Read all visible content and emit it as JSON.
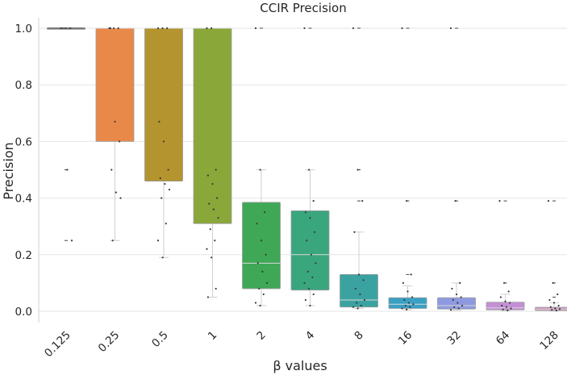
{
  "chart_data": {
    "type": "box",
    "title": "CCIR Precision",
    "xlabel": "β values",
    "ylabel": "Precision",
    "ylim": [
      -0.05,
      1.05
    ],
    "yticks": [
      "0.0",
      "0.2",
      "0.4",
      "0.6",
      "0.8",
      "1.0"
    ],
    "grid": true,
    "categories": [
      "0.125",
      "0.25",
      "0.5",
      "1",
      "2",
      "4",
      "8",
      "16",
      "32",
      "64",
      "128"
    ],
    "colors": [
      "#e0e0e0",
      "#e8894a",
      "#b3942f",
      "#8aa73a",
      "#3fa856",
      "#3aa67e",
      "#3aa3a1",
      "#3aa0c4",
      "#8e9ae0",
      "#c48fd6",
      "#d392c0"
    ],
    "boxes": [
      {
        "q1": 1.0,
        "median": 1.0,
        "q3": 1.0,
        "wlo": 1.0,
        "whi": 1.0,
        "fliers": [
          0.5,
          0.25
        ]
      },
      {
        "q1": 0.6,
        "median": 1.0,
        "q3": 1.0,
        "wlo": 0.25,
        "whi": 1.0,
        "fliers": []
      },
      {
        "q1": 0.46,
        "median": 1.0,
        "q3": 1.0,
        "wlo": 0.19,
        "whi": 1.0,
        "fliers": []
      },
      {
        "q1": 0.31,
        "median": 1.0,
        "q3": 1.0,
        "wlo": 0.05,
        "whi": 1.0,
        "fliers": []
      },
      {
        "q1": 0.08,
        "median": 0.17,
        "q3": 0.385,
        "wlo": 0.02,
        "whi": 0.5,
        "fliers": [
          1.0
        ]
      },
      {
        "q1": 0.075,
        "median": 0.2,
        "q3": 0.355,
        "wlo": 0.02,
        "whi": 0.5,
        "fliers": [
          1.0
        ]
      },
      {
        "q1": 0.015,
        "median": 0.04,
        "q3": 0.13,
        "wlo": 0.01,
        "whi": 0.28,
        "fliers": [
          0.39,
          0.5,
          1.0
        ]
      },
      {
        "q1": 0.01,
        "median": 0.025,
        "q3": 0.048,
        "wlo": 0.005,
        "whi": 0.09,
        "fliers": [
          0.13,
          0.39,
          1.0
        ]
      },
      {
        "q1": 0.008,
        "median": 0.02,
        "q3": 0.048,
        "wlo": 0.003,
        "whi": 0.1,
        "fliers": [
          0.39,
          1.0
        ]
      },
      {
        "q1": 0.005,
        "median": 0.012,
        "q3": 0.032,
        "wlo": 0.002,
        "whi": 0.06,
        "fliers": [
          0.1,
          0.39
        ]
      },
      {
        "q1": 0.003,
        "median": 0.008,
        "q3": 0.014,
        "wlo": 0.001,
        "whi": 0.03,
        "fliers": [
          0.05,
          0.1,
          0.39
        ]
      }
    ],
    "strip_points": [
      [
        1.0,
        1.0,
        1.0,
        1.0,
        1.0,
        1.0,
        1.0,
        0.5,
        0.25
      ],
      [
        1.0,
        1.0,
        1.0,
        1.0,
        0.67,
        0.6,
        0.5,
        0.42,
        0.4,
        0.25
      ],
      [
        1.0,
        1.0,
        1.0,
        0.67,
        0.6,
        0.5,
        0.47,
        0.45,
        0.43,
        0.4,
        0.31,
        0.25,
        0.19
      ],
      [
        1.0,
        1.0,
        0.5,
        0.48,
        0.45,
        0.4,
        0.38,
        0.36,
        0.33,
        0.29,
        0.25,
        0.22,
        0.19,
        0.08,
        0.05
      ],
      [
        1.0,
        0.5,
        0.35,
        0.31,
        0.25,
        0.2,
        0.17,
        0.14,
        0.1,
        0.08,
        0.06,
        0.03,
        0.02
      ],
      [
        1.0,
        0.5,
        0.39,
        0.35,
        0.33,
        0.28,
        0.25,
        0.2,
        0.17,
        0.14,
        0.12,
        0.1,
        0.08,
        0.06,
        0.04,
        0.02
      ],
      [
        1.0,
        0.5,
        0.39,
        0.28,
        0.13,
        0.11,
        0.08,
        0.06,
        0.04,
        0.03,
        0.02,
        0.015,
        0.01
      ],
      [
        1.0,
        0.39,
        0.13,
        0.1,
        0.07,
        0.05,
        0.04,
        0.03,
        0.025,
        0.02,
        0.015,
        0.01,
        0.006
      ],
      [
        1.0,
        0.39,
        0.1,
        0.08,
        0.06,
        0.05,
        0.04,
        0.03,
        0.02,
        0.015,
        0.01,
        0.005
      ],
      [
        0.39,
        0.1,
        0.07,
        0.05,
        0.035,
        0.03,
        0.02,
        0.015,
        0.01,
        0.006,
        0.003
      ],
      [
        0.39,
        0.1,
        0.06,
        0.04,
        0.03,
        0.02,
        0.015,
        0.01,
        0.008,
        0.005,
        0.003
      ]
    ]
  }
}
